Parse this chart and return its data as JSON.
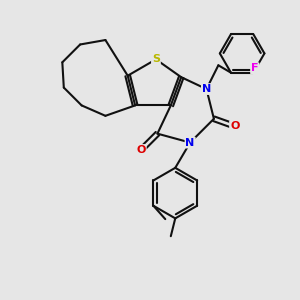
{
  "bg_color": "#e6e6e6",
  "atom_colors": {
    "S": "#b8b800",
    "N": "#0000ee",
    "O": "#dd0000",
    "F": "#ee00ee",
    "C": "#111111"
  },
  "lw": 1.5
}
